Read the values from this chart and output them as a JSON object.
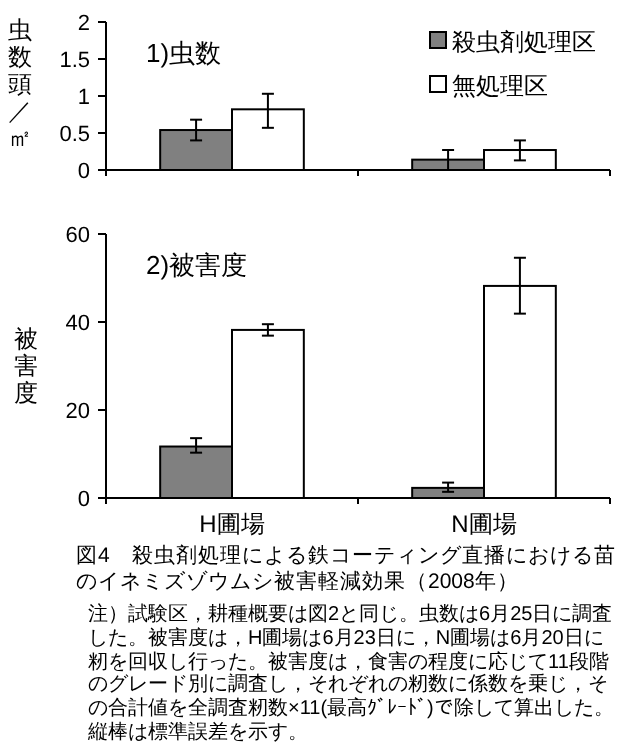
{
  "chart_data": [
    {
      "type": "bar",
      "title": "1)虫数",
      "ylabel": "虫数頭／㎡",
      "categories": [
        null,
        null
      ],
      "ylim": [
        0,
        2
      ],
      "yticks": [
        0,
        {
          "value": 0.5,
          "label": "0.5"
        },
        1,
        {
          "value": 1.5,
          "label": "1.5"
        },
        2
      ],
      "legend": "top right",
      "grid": false,
      "series": [
        {
          "name": "殺虫剤処理区",
          "color": "#808080",
          "values": [
            0.54,
            0.14
          ],
          "errors": [
            [
              0.4,
              0.68
            ],
            [
              0.0,
              0.27
            ]
          ]
        },
        {
          "name": "無処理区",
          "color": "#ffffff",
          "values": [
            0.82,
            0.27
          ],
          "errors": [
            [
              0.57,
              1.03
            ],
            [
              0.13,
              0.4
            ]
          ]
        }
      ]
    },
    {
      "type": "bar",
      "title": "2)被害度",
      "ylabel": "被害度",
      "categories": [
        "H圃場",
        "N圃場"
      ],
      "ylim": [
        0,
        60
      ],
      "yticks": [
        0,
        20,
        40,
        60
      ],
      "legend": false,
      "grid": false,
      "series": [
        {
          "color": "#808080",
          "values": [
            11.7,
            2.3
          ],
          "errors": [
            [
              10.3,
              13.6
            ],
            [
              1.4,
              3.5
            ]
          ]
        },
        {
          "color": "#ffffff",
          "values": [
            38.2,
            48.2
          ],
          "errors": [
            [
              36.9,
              39.5
            ],
            [
              41.9,
              54.6
            ]
          ]
        }
      ],
      "annotations": [
        "図4　殺虫剤処理による鉄コーティング直播における苗のイネミズゾウムシ被害軽減効果（2008年）",
        "注）試験区，耕種概要は図2と同じ。虫数は6月25日に調査した。被害度は，H圃場は6月23日に，N圃場は6月20日に籾を回収し行った。被害度は，食害の程度に応じて11段階のグレード別に調査し，それぞれの籾数に係数を乗じ，その合計値を全調査籾数×11(最高ｸﾞﾚｰﾄﾞ)で除して算出した。縦棒は標準誤差を示す。"
      ]
    }
  ]
}
